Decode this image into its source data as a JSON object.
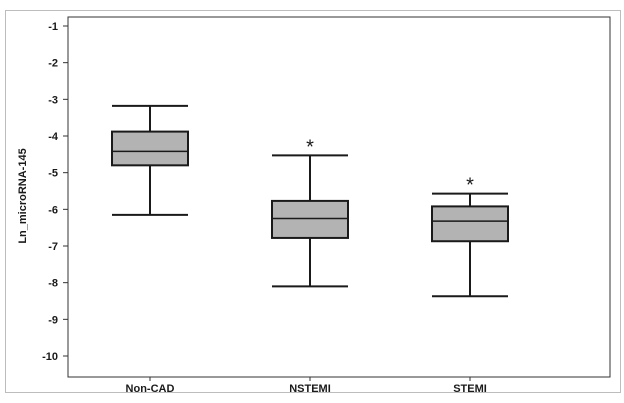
{
  "chart_data": {
    "type": "boxplot",
    "title": "",
    "xlabel": "",
    "ylabel": "Ln_microRNA-145",
    "ylim": [
      -10.6,
      -0.9
    ],
    "yticks": [
      -1,
      -2,
      -3,
      -4,
      -5,
      -6,
      -7,
      -8,
      -9,
      -10
    ],
    "ytick_labels": [
      "-1",
      "-2",
      "-3",
      "-4",
      "-5",
      "-6",
      "-7",
      "-8",
      "-9",
      "-10"
    ],
    "categories": [
      "Non-CAD",
      "NSTEMI",
      "STEMI"
    ],
    "boxes": [
      {
        "category": "Non-CAD",
        "whisker_low": -6.15,
        "q1": -4.8,
        "median": -4.42,
        "q3": -3.88,
        "whisker_high": -3.18,
        "annotation": ""
      },
      {
        "category": "NSTEMI",
        "whisker_low": -8.1,
        "q1": -6.78,
        "median": -6.25,
        "q3": -5.77,
        "whisker_high": -4.53,
        "annotation": "*"
      },
      {
        "category": "STEMI",
        "whisker_low": -8.37,
        "q1": -6.87,
        "median": -6.32,
        "q3": -5.92,
        "whisker_high": -5.57,
        "annotation": "*"
      }
    ],
    "box_fill": "#b3b3b3",
    "line_color": "#1a1a1a",
    "grid": false,
    "legend": "none"
  }
}
